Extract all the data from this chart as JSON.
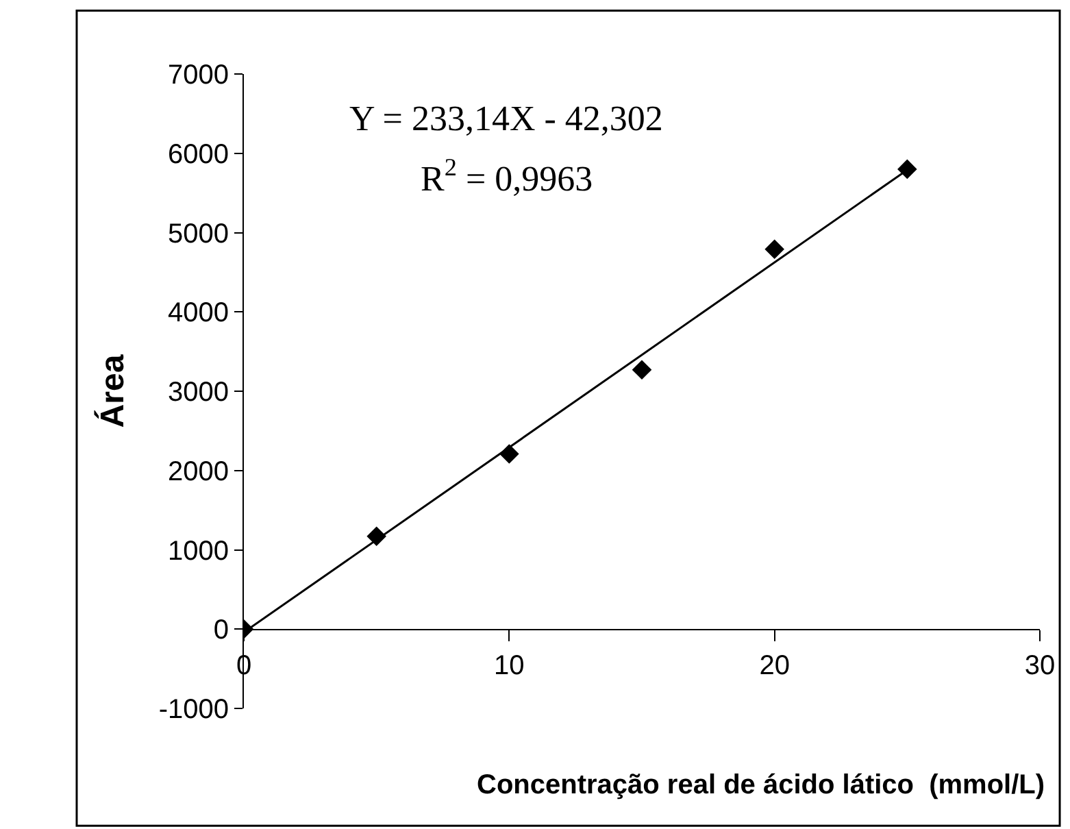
{
  "chart_data": {
    "type": "scatter",
    "xlabel": "Concentração real de ácido lático  (mmol/L)",
    "ylabel": "Área",
    "x": [
      0,
      5,
      10,
      15,
      20,
      25
    ],
    "series": [
      {
        "color": "#000000",
        "marker": "diamond",
        "values": [
          0,
          1170,
          2210,
          3270,
          4790,
          5800
        ]
      },
      {
        "type": "line",
        "color": "#000000",
        "x": [
          0,
          25
        ],
        "values": [
          -40,
          5790
        ]
      }
    ],
    "xlim": [
      0,
      30
    ],
    "xticks": [
      0,
      10,
      20,
      30
    ],
    "ylim": [
      -1000,
      7000
    ],
    "yticks": [
      -1000,
      0,
      1000,
      2000,
      3000,
      4000,
      5000,
      6000,
      7000
    ],
    "annotations": [
      "Y = 233,14X - 42,302",
      "R$^{2}$ = 0,9963"
    ]
  }
}
